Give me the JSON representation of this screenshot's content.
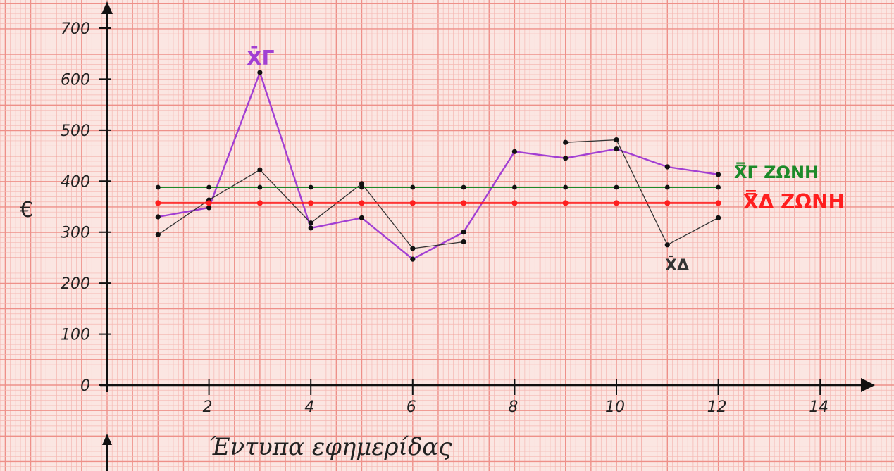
{
  "chart_data": {
    "type": "line",
    "xlabel": "Έντυπα εφημερίδας",
    "ylabel": "€",
    "x_ticks": [
      2,
      4,
      6,
      8,
      10,
      12,
      14
    ],
    "y_ticks": [
      0,
      100,
      200,
      300,
      400,
      500,
      600,
      700
    ],
    "xlim": [
      0,
      15
    ],
    "ylim": [
      0,
      730
    ],
    "grid": true,
    "colors": {
      "grid_minor": "#f5b8b3",
      "grid_major": "#ee9089",
      "background": "#fbe6e2",
      "purple": "#a23fd3",
      "black": "#333333",
      "green": "#1d8a2a",
      "red": "#ff1e1e"
    },
    "series": [
      {
        "name": "X̄Γ",
        "color": "#a23fd3",
        "points": [
          [
            1,
            330
          ],
          [
            2,
            348
          ],
          [
            3,
            613
          ],
          [
            4,
            308
          ],
          [
            5,
            328
          ],
          [
            6,
            247
          ],
          [
            7,
            300
          ],
          [
            8,
            458
          ],
          [
            9,
            445
          ],
          [
            10,
            463
          ],
          [
            11,
            428
          ],
          [
            12,
            413
          ]
        ]
      },
      {
        "name": "X̄Δ",
        "color": "#333333",
        "segments": [
          [
            [
              1,
              295
            ],
            [
              2,
              363
            ],
            [
              3,
              422
            ],
            [
              4,
              318
            ],
            [
              5,
              395
            ],
            [
              6,
              268
            ],
            [
              7,
              281
            ]
          ],
          [
            [
              9,
              476
            ],
            [
              10,
              481
            ],
            [
              11,
              275
            ],
            [
              12,
              328
            ]
          ]
        ]
      },
      {
        "name": "X̿Γ ΖΩΝΗ",
        "color": "#1d8a2a",
        "value": 388,
        "x_range": [
          1,
          12
        ]
      },
      {
        "name": "X̿Δ ΖΩΝΗ",
        "color": "#ff1e1e",
        "value": 357,
        "x_range": [
          1,
          12
        ]
      }
    ]
  }
}
